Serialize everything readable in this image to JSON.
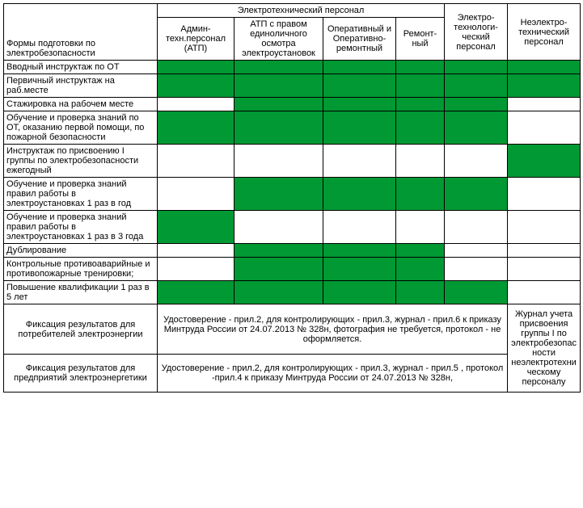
{
  "colors": {
    "filled": "#009933",
    "empty": "#ffffff",
    "border": "#000000",
    "text": "#000000"
  },
  "header": {
    "topLeft": "Формы подготовки по электробезопасности",
    "group1": "Электротехнический персонал",
    "group2": "Электро-технологи-ческий персонал",
    "group3": "Неэлектро-технический персонал",
    "sub1": "Админ-техн.персонал (АТП)",
    "sub2": "АТП с правом единоличного осмотра электроустановок",
    "sub3": "Оперативный и Оперативно-ремонтный",
    "sub4": "Ремонт-ный"
  },
  "rows": [
    {
      "label": "Вводный инструктаж по ОТ",
      "cells": [
        "g",
        "g",
        "g",
        "g",
        "g",
        "g"
      ]
    },
    {
      "label": "Первичный инструктаж на раб.месте",
      "cells": [
        "g",
        "g",
        "g",
        "g",
        "g",
        "g"
      ]
    },
    {
      "label": "Стажировка на рабочем месте",
      "cells": [
        "w",
        "g",
        "g",
        "g",
        "g",
        "w"
      ]
    },
    {
      "label": "Обучение и проверка знаний по ОТ, оказанию первой помощи, по пожарной безопасности",
      "cells": [
        "g",
        "g",
        "g",
        "g",
        "g",
        "w"
      ]
    },
    {
      "label": "Инструктаж по присвоению I группы по электробезопасности ежегодный",
      "cells": [
        "w",
        "w",
        "w",
        "w",
        "w",
        "g"
      ]
    },
    {
      "label": "Обучение и проверка знаний правил работы в электроустановках 1 раз в год",
      "cells": [
        "w",
        "g",
        "g",
        "g",
        "g",
        "w"
      ]
    },
    {
      "label": "Обучение и проверка знаний правил работы в электроустановках 1 раз в 3 года",
      "cells": [
        "g",
        "w",
        "w",
        "w",
        "w",
        "w"
      ]
    },
    {
      "label": "Дублирование",
      "cells": [
        "w",
        "g",
        "g",
        "g",
        "w",
        "w"
      ]
    },
    {
      "label": "Контрольные противоаварийные и противопожарные тренировки;",
      "cells": [
        "w",
        "g",
        "g",
        "g",
        "w",
        "w"
      ]
    },
    {
      "label": "Повышение квалификации 1 раз в 5 лет",
      "cells": [
        "g",
        "g",
        "g",
        "g",
        "g",
        "w"
      ]
    }
  ],
  "footer": {
    "row1Label": "Фиксация результатов для потребителей электроэнергии",
    "row1Text": "Удостоверение - прил.2, для контролирующих  - прил.3, журнал - прил.6 к приказу Минтруда России от 24.07.2013 № 328н, фотография не требуется, протокол - не оформляется.",
    "row2Label": "Фиксация результатов для предприятий электроэнергетики",
    "row2Text": "Удостоверение - прил.2, для контролирующих  - прил.3, журнал - прил.5 , протокол -прил.4 к приказу Минтруда России от 24.07.2013 № 328н,",
    "lastColText": "Журнал учета присвоения группы I по электробезопасности неэлектротехническому персоналу"
  }
}
